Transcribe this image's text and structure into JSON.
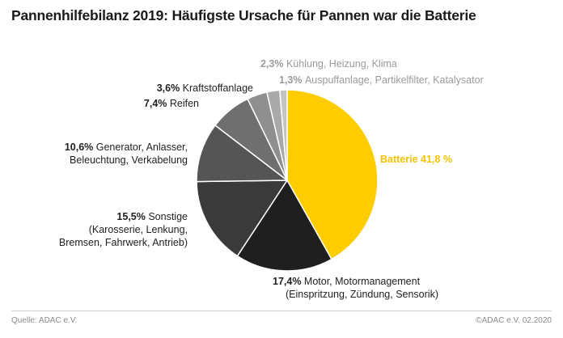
{
  "title": "Pannenhilfebilanz 2019: Häufigste Ursache für Pannen war die Batterie",
  "footer": {
    "source": "Quelle: ADAC e.V.",
    "copyright": "©ADAC e.V.  02.2020"
  },
  "chart_data": {
    "type": "pie",
    "title": "Pannenhilfebilanz 2019: Häufigste Ursache für Pannen war die Batterie",
    "slices": [
      {
        "pct_text": "",
        "name_lines": [
          "Batterie 41,8 %"
        ],
        "value": 41.8,
        "color": "#ffcc00"
      },
      {
        "pct_text": "17,4%",
        "name_lines": [
          "Motor, Motormanagement",
          "(Einspritzung, Zündung, Sensorik)"
        ],
        "value": 17.4,
        "color": "#1f1f1f"
      },
      {
        "pct_text": "15,5%",
        "name_lines": [
          "Sonstige",
          "(Karosserie, Lenkung,",
          "Bremsen, Fahrwerk, Antrieb)"
        ],
        "value": 15.5,
        "color": "#3a3a3a"
      },
      {
        "pct_text": "10,6%",
        "name_lines": [
          "Generator, Anlasser,",
          "Beleuchtung, Verkabelung"
        ],
        "value": 10.6,
        "color": "#555555"
      },
      {
        "pct_text": "7,4%",
        "name_lines": [
          "Reifen"
        ],
        "value": 7.4,
        "color": "#6f6f6f"
      },
      {
        "pct_text": "3,6%",
        "name_lines": [
          "Kraftstoffanlage"
        ],
        "value": 3.6,
        "color": "#8f8f8f"
      },
      {
        "pct_text": "2,3%",
        "name_lines": [
          "Kühlung, Heizung, Klima"
        ],
        "value": 2.3,
        "color": "#a9a9a9"
      },
      {
        "pct_text": "1,3%",
        "name_lines": [
          "Auspuffanlage, Partikelfilter, Katalysator"
        ],
        "value": 1.3,
        "color": "#c4c4c4"
      }
    ]
  }
}
